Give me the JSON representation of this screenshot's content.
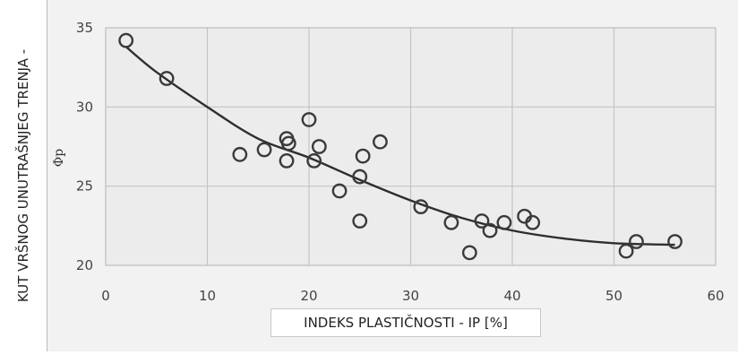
{
  "chart_data": {
    "type": "scatter",
    "title": "",
    "ylabel": "KUT VRŠNOG UNUTRAŠNJEG TRENJA -",
    "xlabel": "INDEKS PLASTIČNOSTI - IP [%]",
    "ylabel_symbol": "Φp",
    "xlim": [
      0,
      60
    ],
    "ylim": [
      20,
      35
    ],
    "x_ticks": [
      "0",
      "10",
      "20",
      "30",
      "40",
      "50",
      "60"
    ],
    "y_ticks": [
      "20",
      "25",
      "30",
      "35"
    ],
    "grid": true,
    "points": [
      {
        "x": 2,
        "y": 34.2
      },
      {
        "x": 6,
        "y": 31.8
      },
      {
        "x": 13.2,
        "y": 27.0
      },
      {
        "x": 15.6,
        "y": 27.3
      },
      {
        "x": 17.8,
        "y": 28.0
      },
      {
        "x": 18.0,
        "y": 27.7
      },
      {
        "x": 17.8,
        "y": 26.6
      },
      {
        "x": 20.0,
        "y": 29.2
      },
      {
        "x": 20.5,
        "y": 26.6
      },
      {
        "x": 21.0,
        "y": 27.5
      },
      {
        "x": 23.0,
        "y": 24.7
      },
      {
        "x": 25.0,
        "y": 25.6
      },
      {
        "x": 25.3,
        "y": 26.9
      },
      {
        "x": 25.0,
        "y": 22.8
      },
      {
        "x": 27.0,
        "y": 27.8
      },
      {
        "x": 31.0,
        "y": 23.7
      },
      {
        "x": 34.0,
        "y": 22.7
      },
      {
        "x": 35.8,
        "y": 20.8
      },
      {
        "x": 37.0,
        "y": 22.8
      },
      {
        "x": 37.8,
        "y": 22.2
      },
      {
        "x": 39.2,
        "y": 22.7
      },
      {
        "x": 41.2,
        "y": 23.1
      },
      {
        "x": 42.0,
        "y": 22.7
      },
      {
        "x": 51.2,
        "y": 20.9
      },
      {
        "x": 52.2,
        "y": 21.5
      },
      {
        "x": 56.0,
        "y": 21.5
      }
    ],
    "trend_line": [
      {
        "x": 2,
        "y": 33.8
      },
      {
        "x": 5,
        "y": 32.2
      },
      {
        "x": 10,
        "y": 30.0
      },
      {
        "x": 15,
        "y": 28.0
      },
      {
        "x": 20,
        "y": 26.8
      },
      {
        "x": 25,
        "y": 25.4
      },
      {
        "x": 30,
        "y": 24.1
      },
      {
        "x": 35,
        "y": 23.0
      },
      {
        "x": 40,
        "y": 22.2
      },
      {
        "x": 45,
        "y": 21.7
      },
      {
        "x": 50,
        "y": 21.4
      },
      {
        "x": 56,
        "y": 21.3
      }
    ],
    "colors": {
      "marker": "#3a3a3a",
      "line": "#2e2e2e",
      "grid": "#c4c4c4",
      "plot_background": "#ececec",
      "figure_background": "#f2f2f2"
    }
  }
}
